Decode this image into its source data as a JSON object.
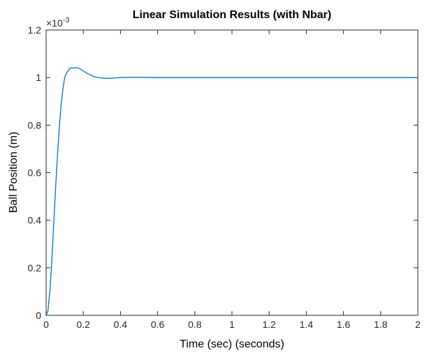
{
  "chart_data": {
    "type": "line",
    "title": "Linear Simulation Results (with Nbar)",
    "xlabel": "Time (sec) (seconds)",
    "ylabel": "Ball Position (m)",
    "xlim": [
      0,
      2
    ],
    "ylim": [
      0,
      0.0012
    ],
    "y_exponent_label": "×10",
    "y_exponent_power": "-3",
    "x_ticks": [
      0,
      0.2,
      0.4,
      0.6,
      0.8,
      1.0,
      1.2,
      1.4,
      1.6,
      1.8,
      2.0
    ],
    "x_tick_labels": [
      "0",
      "0.2",
      "0.4",
      "0.6",
      "0.8",
      "1",
      "1.2",
      "1.4",
      "1.6",
      "1.8",
      "2"
    ],
    "y_ticks": [
      0,
      0.0002,
      0.0004,
      0.0006,
      0.0008,
      0.001,
      0.0012
    ],
    "y_tick_labels": [
      "0",
      "0.2",
      "0.4",
      "0.6",
      "0.8",
      "1",
      "1.2"
    ],
    "grid": false,
    "line_color": "#0072bd",
    "series": [
      {
        "x": [
          0,
          0.01,
          0.02,
          0.03,
          0.04,
          0.05,
          0.06,
          0.07,
          0.08,
          0.09,
          0.1,
          0.11,
          0.12,
          0.13,
          0.14,
          0.15,
          0.16,
          0.17,
          0.18,
          0.19,
          0.2,
          0.22,
          0.24,
          0.26,
          0.28,
          0.3,
          0.32,
          0.34,
          0.36,
          0.38,
          0.4,
          0.45,
          0.5,
          0.6,
          0.8,
          1.0,
          1.2,
          1.4,
          1.6,
          1.8,
          2.0
        ],
        "y": [
          0,
          2e-05,
          0.0001,
          0.00022,
          0.00037,
          0.00052,
          0.00066,
          0.00078,
          0.00088,
          0.00095,
          0.001,
          0.00102,
          0.00103,
          0.00104,
          0.00104,
          0.00104,
          0.001042,
          0.00104,
          0.001037,
          0.001033,
          0.001028,
          0.001018,
          0.00101,
          0.001004,
          0.001,
          0.000998,
          0.000997,
          0.000997,
          0.000998,
          0.000999,
          0.001,
          0.001001,
          0.001001,
          0.001,
          0.001,
          0.001,
          0.001,
          0.001,
          0.001,
          0.001,
          0.001
        ]
      }
    ]
  }
}
